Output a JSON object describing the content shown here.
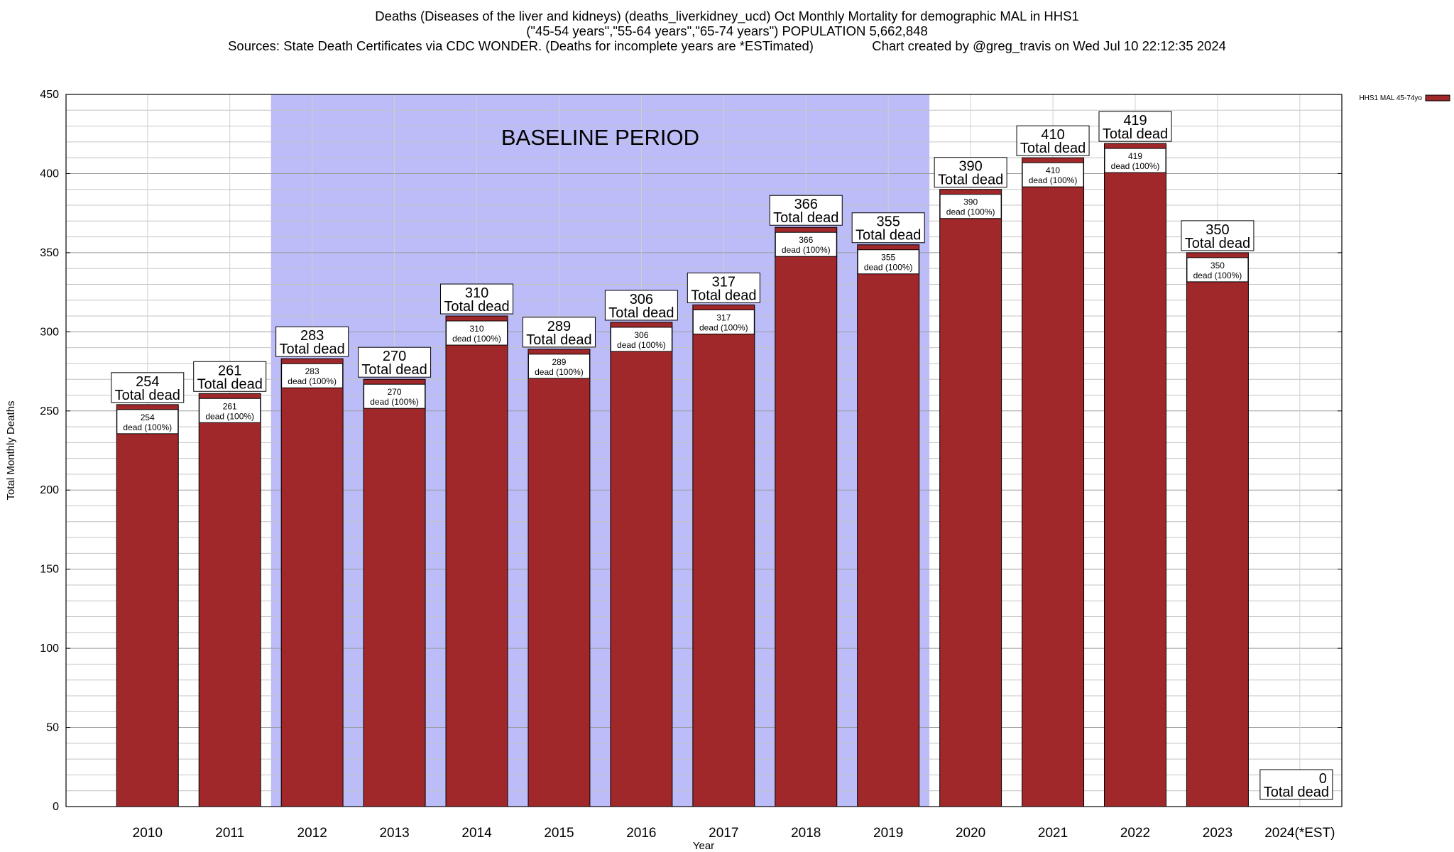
{
  "header": {
    "title_line1": "Deaths (Diseases of the liver and kidneys) (deaths_liverkidney_ucd) Oct Monthly Mortality for demographic MAL in HHS1",
    "title_line2": "(\"45-54 years\",\"55-64 years\",\"65-74 years\") POPULATION 5,662,848",
    "title_line3": "Sources: State Death Certificates via CDC WONDER. (Deaths for incomplete years are *ESTimated)                Chart created by @greg_travis on Wed Jul 10 22:12:35 2024"
  },
  "chart_data": {
    "type": "bar",
    "xlabel": "Year",
    "ylabel": "Total Monthly Deaths",
    "ylim": [
      0,
      450
    ],
    "y_major_ticks": [
      0,
      50,
      100,
      150,
      200,
      250,
      300,
      350,
      400,
      450
    ],
    "y_minor_step": 10,
    "grid": true,
    "legend": {
      "position": "top-right",
      "entries": [
        {
          "name": "HHS1 MAL 45-74yo",
          "color": "#a0282a"
        }
      ]
    },
    "baseline_period": {
      "label": "BASELINE PERIOD",
      "from": "2012",
      "to": "2019",
      "color": "#bcbcf8"
    },
    "bar_color": "#a0282a",
    "categories": [
      "2010",
      "2011",
      "2012",
      "2013",
      "2014",
      "2015",
      "2016",
      "2017",
      "2018",
      "2019",
      "2020",
      "2021",
      "2022",
      "2023",
      "2024(*EST)"
    ],
    "series": [
      {
        "name": "HHS1 MAL 45-74yo",
        "values": [
          254,
          261,
          283,
          270,
          310,
          289,
          306,
          317,
          366,
          355,
          390,
          410,
          419,
          350,
          0
        ]
      }
    ],
    "top_label_suffix": "Total dead",
    "inner_label_suffix": "dead (100%)"
  }
}
